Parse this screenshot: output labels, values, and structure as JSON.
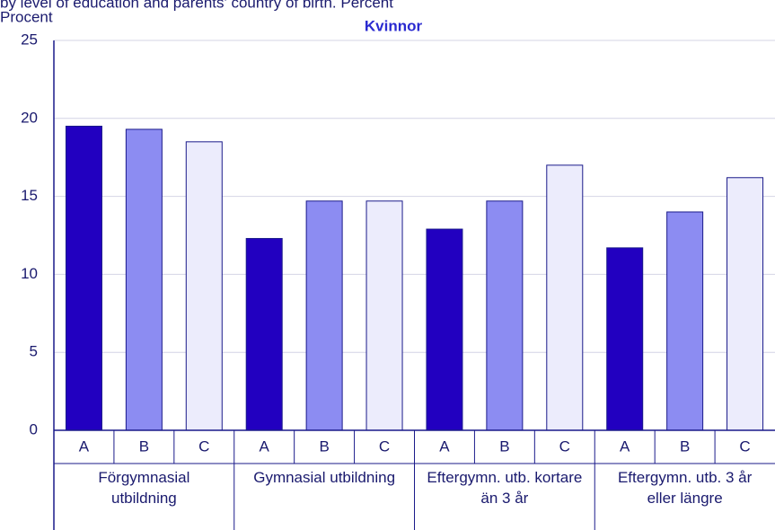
{
  "chart_data": {
    "type": "bar",
    "subtitle": "by level of education and parents' country of birth. Percent",
    "title": "Kvinnor",
    "ylabel": "Procent",
    "categories": [
      "Förgymnasial utbildning",
      "Gymnasial utbildning",
      "Eftergymn. utb. kortare än 3 år",
      "Eftergymn. utb. 3 år eller längre"
    ],
    "series": [
      {
        "name": "A",
        "color": "#2200c0",
        "values": [
          19.5,
          12.3,
          12.9,
          11.7
        ]
      },
      {
        "name": "B",
        "color": "#8c8cf2",
        "values": [
          19.3,
          14.7,
          14.7,
          14.0
        ]
      },
      {
        "name": "C",
        "color": "#ececfc",
        "values": [
          18.5,
          14.7,
          17.0,
          16.2
        ]
      }
    ],
    "ylim": [
      0,
      25
    ],
    "yticks": [
      0,
      5,
      10,
      15,
      20,
      25
    ],
    "grid": true
  }
}
